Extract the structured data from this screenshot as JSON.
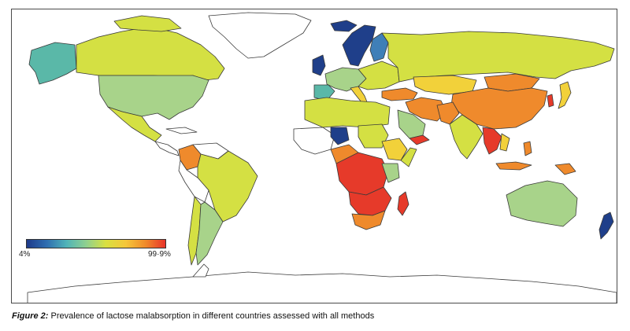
{
  "legend": {
    "min_label": "4%",
    "max_label": "99·9%",
    "colors": [
      "#1e3a8a",
      "#2f6db0",
      "#4fb3b8",
      "#8fd08f",
      "#d9e040",
      "#f5c73a",
      "#f08a2a",
      "#e8332a"
    ]
  },
  "caption": {
    "label": "Figure 2:",
    "text": " Prevalence of lactose malabsorption in different countries assessed with all methods"
  },
  "colors": {
    "very_low": "#1f3f8a",
    "low": "#3f7fb8",
    "teal": "#5ab8a8",
    "light_green": "#a8d38a",
    "yellow_green": "#d4e043",
    "yellow": "#f2d13a",
    "orange": "#ef8a2c",
    "red": "#e63a2a",
    "no_data": "#ffffff"
  }
}
